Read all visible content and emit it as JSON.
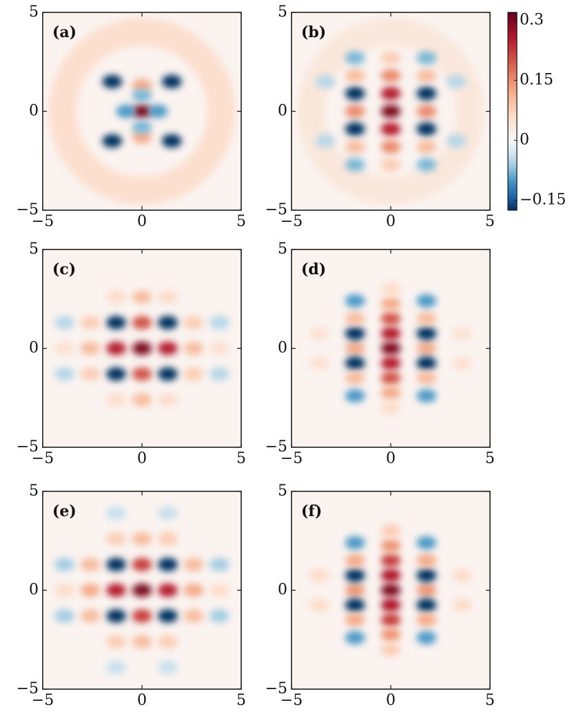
{
  "chart_data": [
    {
      "type": "heatmap",
      "label": "(a)",
      "xlim": [
        -5,
        5
      ],
      "ylim": [
        -5,
        5
      ],
      "xticks": [
        {
          "value": -5,
          "label": "−5"
        },
        0,
        5
      ],
      "yticks": [
        {
          "value": -5,
          "label": "−5"
        },
        0,
        5
      ],
      "ring": {
        "r": 4,
        "value": 0.06
      },
      "peaks": [
        [
          0,
          0,
          0.3
        ],
        [
          0,
          1.3,
          0.12
        ],
        [
          0,
          -1.3,
          0.12
        ],
        [
          0.8,
          0,
          -0.1
        ],
        [
          -0.8,
          0,
          -0.1
        ],
        [
          0,
          0.8,
          -0.08
        ],
        [
          0,
          -0.8,
          -0.08
        ],
        [
          1.5,
          1.5,
          -0.18
        ],
        [
          -1.5,
          1.5,
          -0.18
        ],
        [
          1.5,
          -1.5,
          -0.18
        ],
        [
          -1.5,
          -1.5,
          -0.18
        ]
      ]
    },
    {
      "type": "heatmap",
      "label": "(b)",
      "xlim": [
        -5,
        5
      ],
      "ylim": [
        -5,
        5
      ],
      "xticks": [
        {
          "value": -5,
          "label": "−5"
        },
        0,
        5
      ],
      "yticks": [
        {
          "value": -5,
          "label": "−5"
        },
        0,
        5
      ],
      "ring": {
        "r": 4,
        "value": 0.04
      },
      "peaks": [
        [
          0,
          0,
          0.3
        ],
        [
          0,
          0.9,
          0.25
        ],
        [
          0,
          -0.9,
          0.25
        ],
        [
          0,
          1.8,
          0.15
        ],
        [
          0,
          -1.8,
          0.15
        ],
        [
          0,
          2.7,
          0.08
        ],
        [
          0,
          -2.7,
          0.08
        ],
        [
          1.8,
          0,
          0.15
        ],
        [
          -1.8,
          0,
          0.15
        ],
        [
          1.8,
          0.9,
          -0.18
        ],
        [
          -1.8,
          0.9,
          -0.18
        ],
        [
          1.8,
          -0.9,
          -0.18
        ],
        [
          -1.8,
          -0.9,
          -0.18
        ],
        [
          1.8,
          1.8,
          0.1
        ],
        [
          -1.8,
          1.8,
          0.1
        ],
        [
          1.8,
          -1.8,
          0.1
        ],
        [
          -1.8,
          -1.8,
          0.1
        ],
        [
          1.8,
          2.7,
          -0.08
        ],
        [
          -1.8,
          2.7,
          -0.08
        ],
        [
          1.8,
          -2.7,
          -0.08
        ],
        [
          -1.8,
          -2.7,
          -0.08
        ],
        [
          3.3,
          1.5,
          -0.05
        ],
        [
          -3.3,
          1.5,
          -0.05
        ],
        [
          3.3,
          -1.5,
          -0.05
        ],
        [
          -3.3,
          -1.5,
          -0.05
        ]
      ]
    },
    {
      "type": "heatmap",
      "label": "(c)",
      "xlim": [
        -5,
        5
      ],
      "ylim": [
        -5,
        5
      ],
      "xticks": [
        {
          "value": -5,
          "label": "−5"
        },
        0,
        5
      ],
      "yticks": [
        {
          "value": -5,
          "label": "−5"
        },
        0,
        5
      ],
      "peaks": [
        [
          0,
          0,
          0.3
        ],
        [
          1.3,
          0,
          0.25
        ],
        [
          -1.3,
          0,
          0.25
        ],
        [
          2.6,
          0,
          0.1
        ],
        [
          -2.6,
          0,
          0.1
        ],
        [
          3.9,
          0,
          0.05
        ],
        [
          -3.9,
          0,
          0.05
        ],
        [
          0,
          1.3,
          0.2
        ],
        [
          0,
          -1.3,
          0.2
        ],
        [
          1.3,
          1.3,
          -0.18
        ],
        [
          -1.3,
          1.3,
          -0.18
        ],
        [
          1.3,
          -1.3,
          -0.18
        ],
        [
          -1.3,
          -1.3,
          -0.18
        ],
        [
          2.6,
          1.3,
          0.08
        ],
        [
          -2.6,
          1.3,
          0.08
        ],
        [
          2.6,
          -1.3,
          0.08
        ],
        [
          -2.6,
          -1.3,
          0.08
        ],
        [
          3.9,
          1.3,
          -0.05
        ],
        [
          -3.9,
          1.3,
          -0.05
        ],
        [
          3.9,
          -1.3,
          -0.05
        ],
        [
          -3.9,
          -1.3,
          -0.05
        ],
        [
          0,
          2.6,
          0.1
        ],
        [
          0,
          -2.6,
          0.1
        ],
        [
          1.3,
          2.6,
          0.06
        ],
        [
          -1.3,
          2.6,
          0.06
        ],
        [
          1.3,
          -2.6,
          0.06
        ],
        [
          -1.3,
          -2.6,
          0.06
        ]
      ]
    },
    {
      "type": "heatmap",
      "label": "(d)",
      "xlim": [
        -5,
        5
      ],
      "ylim": [
        -5,
        5
      ],
      "xticks": [
        {
          "value": -5,
          "label": "−5"
        },
        0,
        5
      ],
      "yticks": [
        {
          "value": -5,
          "label": "−5"
        },
        0,
        5
      ],
      "peaks": [
        [
          0,
          0,
          0.3
        ],
        [
          0,
          0.75,
          0.25
        ],
        [
          0,
          -0.75,
          0.25
        ],
        [
          0,
          1.5,
          0.2
        ],
        [
          0,
          -1.5,
          0.2
        ],
        [
          0,
          2.25,
          0.12
        ],
        [
          0,
          -2.25,
          0.12
        ],
        [
          0,
          3,
          0.06
        ],
        [
          0,
          -3,
          0.06
        ],
        [
          1.8,
          0,
          0.12
        ],
        [
          -1.8,
          0,
          0.12
        ],
        [
          1.8,
          0.75,
          -0.18
        ],
        [
          -1.8,
          0.75,
          -0.18
        ],
        [
          1.8,
          -0.75,
          -0.18
        ],
        [
          -1.8,
          -0.75,
          -0.18
        ],
        [
          1.8,
          1.5,
          0.1
        ],
        [
          -1.8,
          1.5,
          0.1
        ],
        [
          1.8,
          -1.5,
          0.1
        ],
        [
          -1.8,
          -1.5,
          0.1
        ],
        [
          1.8,
          2.4,
          -0.1
        ],
        [
          -1.8,
          2.4,
          -0.1
        ],
        [
          1.8,
          -2.4,
          -0.1
        ],
        [
          -1.8,
          -2.4,
          -0.1
        ],
        [
          3.6,
          0.75,
          0.05
        ],
        [
          -3.6,
          0.75,
          0.05
        ],
        [
          3.6,
          -0.75,
          0.05
        ],
        [
          -3.6,
          -0.75,
          0.05
        ]
      ]
    },
    {
      "type": "heatmap",
      "label": "(e)",
      "xlim": [
        -5,
        5
      ],
      "ylim": [
        -5,
        5
      ],
      "xticks": [
        {
          "value": -5,
          "label": "−5"
        },
        0,
        5
      ],
      "yticks": [
        {
          "value": -5,
          "label": "−5"
        },
        0,
        5
      ],
      "peaks": [
        [
          0,
          0,
          0.3
        ],
        [
          1.3,
          0,
          0.25
        ],
        [
          -1.3,
          0,
          0.25
        ],
        [
          2.6,
          0,
          0.12
        ],
        [
          -2.6,
          0,
          0.12
        ],
        [
          3.9,
          0,
          0.06
        ],
        [
          -3.9,
          0,
          0.06
        ],
        [
          0,
          1.3,
          0.22
        ],
        [
          0,
          -1.3,
          0.22
        ],
        [
          1.3,
          1.3,
          -0.18
        ],
        [
          -1.3,
          1.3,
          -0.18
        ],
        [
          1.3,
          -1.3,
          -0.18
        ],
        [
          -1.3,
          -1.3,
          -0.18
        ],
        [
          2.6,
          1.3,
          0.1
        ],
        [
          -2.6,
          1.3,
          0.1
        ],
        [
          2.6,
          -1.3,
          0.1
        ],
        [
          -2.6,
          -1.3,
          0.1
        ],
        [
          3.9,
          1.3,
          -0.06
        ],
        [
          -3.9,
          1.3,
          -0.06
        ],
        [
          3.9,
          -1.3,
          -0.06
        ],
        [
          -3.9,
          -1.3,
          -0.06
        ],
        [
          0,
          2.6,
          0.1
        ],
        [
          0,
          -2.6,
          0.1
        ],
        [
          1.3,
          2.6,
          0.08
        ],
        [
          -1.3,
          2.6,
          0.08
        ],
        [
          1.3,
          -2.6,
          0.08
        ],
        [
          -1.3,
          -2.6,
          0.08
        ],
        [
          1.3,
          3.9,
          -0.04
        ],
        [
          -1.3,
          3.9,
          -0.04
        ],
        [
          1.3,
          -3.9,
          -0.04
        ],
        [
          -1.3,
          -3.9,
          -0.04
        ]
      ]
    },
    {
      "type": "heatmap",
      "label": "(f)",
      "xlim": [
        -5,
        5
      ],
      "ylim": [
        -5,
        5
      ],
      "xticks": [
        {
          "value": -5,
          "label": "−5"
        },
        0,
        5
      ],
      "yticks": [
        {
          "value": -5,
          "label": "−5"
        },
        0,
        5
      ],
      "peaks": [
        [
          0,
          0,
          0.3
        ],
        [
          0,
          0.75,
          0.26
        ],
        [
          0,
          -0.75,
          0.26
        ],
        [
          0,
          1.5,
          0.22
        ],
        [
          0,
          -1.5,
          0.22
        ],
        [
          0,
          2.25,
          0.14
        ],
        [
          0,
          -2.25,
          0.14
        ],
        [
          0,
          3,
          0.08
        ],
        [
          0,
          -3,
          0.08
        ],
        [
          1.8,
          0,
          0.14
        ],
        [
          -1.8,
          0,
          0.14
        ],
        [
          1.8,
          0.75,
          -0.18
        ],
        [
          -1.8,
          0.75,
          -0.18
        ],
        [
          1.8,
          -0.75,
          -0.18
        ],
        [
          -1.8,
          -0.75,
          -0.18
        ],
        [
          1.8,
          1.5,
          0.12
        ],
        [
          -1.8,
          1.5,
          0.12
        ],
        [
          1.8,
          -1.5,
          0.12
        ],
        [
          -1.8,
          -1.5,
          0.12
        ],
        [
          1.8,
          2.4,
          -0.1
        ],
        [
          -1.8,
          2.4,
          -0.1
        ],
        [
          1.8,
          -2.4,
          -0.1
        ],
        [
          -1.8,
          -2.4,
          -0.1
        ],
        [
          3.6,
          0.75,
          0.06
        ],
        [
          -3.6,
          0.75,
          0.06
        ],
        [
          3.6,
          -0.75,
          0.06
        ],
        [
          -3.6,
          -0.75,
          0.06
        ]
      ]
    }
  ],
  "colorbar": {
    "lim": [
      -0.175,
      0.32
    ],
    "ticks": [
      0.3,
      0.15,
      0,
      {
        "value": -0.15,
        "label": "−0.15"
      }
    ]
  }
}
